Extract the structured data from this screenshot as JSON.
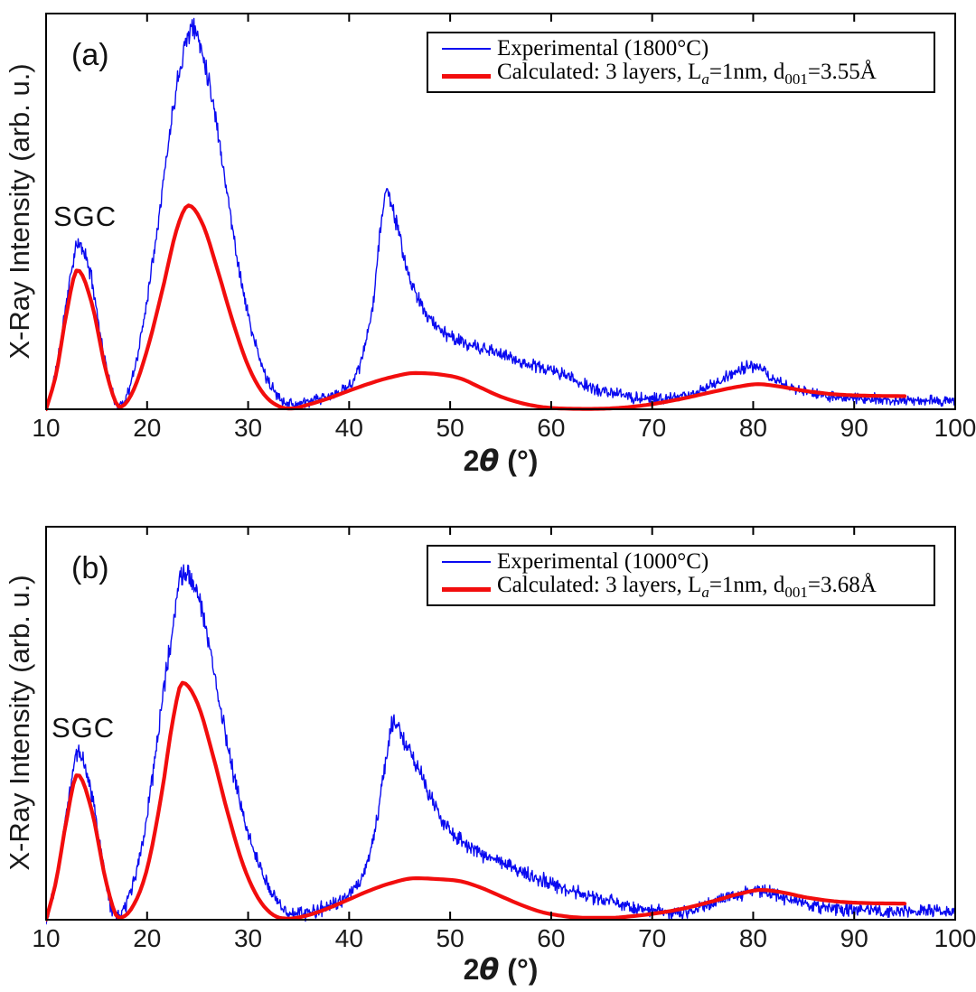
{
  "figure": {
    "background": "#ffffff",
    "axis_color": "#000000",
    "tick_label_color": "#1a1a1a"
  },
  "chart_data": [
    {
      "type": "line",
      "panel": "(a)",
      "annotation": "SGC",
      "ylabel": "X-Ray Intensity (arb. u.)",
      "xlabel": {
        "prefix": "2",
        "theta": "θ",
        "suffix": " (°)"
      },
      "xlim": [
        10,
        100
      ],
      "x_ticks": [
        "10",
        "20",
        "30",
        "40",
        "50",
        "60",
        "70",
        "80",
        "90",
        "100"
      ],
      "grid": false,
      "legend_position": "upper right",
      "legend": [
        {
          "label": "Experimental (1800°C)",
          "color": "#0a0af0",
          "line_width": 2
        },
        {
          "p1": "Calculated: 3 layers, L",
          "s1": "a",
          "p2": "=1nm, d",
          "s2": "001",
          "p3": "=3.55Å",
          "color": "#f20d0d",
          "line_width": 5
        }
      ],
      "series": [
        {
          "name": "Experimental (1800°C)",
          "color": "#0a0af0",
          "style": "noisy",
          "line_width": 1.4,
          "seed": 11,
          "noise_base": 0.01,
          "noise_scale": 0.011,
          "x_range": [
            10,
            100
          ],
          "anchors": [
            [
              10,
              0.0
            ],
            [
              11,
              0.1
            ],
            [
              12,
              0.27
            ],
            [
              13.2,
              0.415
            ],
            [
              14.5,
              0.33
            ],
            [
              15.5,
              0.17
            ],
            [
              16.5,
              0.045
            ],
            [
              17.2,
              0.012
            ],
            [
              18,
              0.035
            ],
            [
              19,
              0.13
            ],
            [
              20,
              0.28
            ],
            [
              21,
              0.46
            ],
            [
              22,
              0.65
            ],
            [
              23,
              0.83
            ],
            [
              24.5,
              0.963
            ],
            [
              25.5,
              0.9
            ],
            [
              26.5,
              0.78
            ],
            [
              27.5,
              0.62
            ],
            [
              28.5,
              0.45
            ],
            [
              29.5,
              0.3
            ],
            [
              30.5,
              0.185
            ],
            [
              31.5,
              0.1
            ],
            [
              32.5,
              0.048
            ],
            [
              33.8,
              0.018
            ],
            [
              35,
              0.013
            ],
            [
              36.5,
              0.022
            ],
            [
              38,
              0.032
            ],
            [
              39.5,
              0.05
            ],
            [
              40.5,
              0.08
            ],
            [
              41.5,
              0.15
            ],
            [
              42.5,
              0.3
            ],
            [
              43.2,
              0.48
            ],
            [
              43.7,
              0.55
            ],
            [
              44.4,
              0.5
            ],
            [
              45.2,
              0.41
            ],
            [
              46,
              0.33
            ],
            [
              47,
              0.27
            ],
            [
              48.5,
              0.215
            ],
            [
              50,
              0.185
            ],
            [
              52,
              0.161
            ],
            [
              55,
              0.14
            ],
            [
              57,
              0.12
            ],
            [
              60,
              0.098
            ],
            [
              61.5,
              0.085
            ],
            [
              63,
              0.065
            ],
            [
              65,
              0.046
            ],
            [
              67,
              0.036
            ],
            [
              69,
              0.028
            ],
            [
              71,
              0.026
            ],
            [
              73,
              0.033
            ],
            [
              75,
              0.05
            ],
            [
              77,
              0.077
            ],
            [
              79,
              0.104
            ],
            [
              80,
              0.107
            ],
            [
              81.5,
              0.086
            ],
            [
              83,
              0.063
            ],
            [
              85,
              0.045
            ],
            [
              88,
              0.031
            ],
            [
              92,
              0.026
            ],
            [
              96,
              0.023
            ],
            [
              100,
              0.021
            ]
          ]
        },
        {
          "name": "Calculated: 3 layers, La=1nm, d001=3.55Å",
          "color": "#f20d0d",
          "style": "smooth",
          "line_width": 4.2,
          "x_range": [
            10,
            95
          ],
          "anchors": [
            [
              10,
              0.0
            ],
            [
              11,
              0.09
            ],
            [
              12,
              0.24
            ],
            [
              13.1,
              0.352
            ],
            [
              14.5,
              0.27
            ],
            [
              16,
              0.09
            ],
            [
              17.3,
              0.006
            ],
            [
              18.5,
              0.04
            ],
            [
              20,
              0.15
            ],
            [
              21.5,
              0.3
            ],
            [
              23,
              0.46
            ],
            [
              24.1,
              0.515
            ],
            [
              25.5,
              0.468
            ],
            [
              27,
              0.35
            ],
            [
              28.5,
              0.22
            ],
            [
              30,
              0.11
            ],
            [
              31.5,
              0.04
            ],
            [
              33,
              0.008
            ],
            [
              34.3,
              0.002
            ],
            [
              36,
              0.012
            ],
            [
              38,
              0.028
            ],
            [
              40,
              0.047
            ],
            [
              42,
              0.065
            ],
            [
              44,
              0.08
            ],
            [
              46.5,
              0.0915
            ],
            [
              49,
              0.088
            ],
            [
              51,
              0.078
            ],
            [
              53,
              0.055
            ],
            [
              55,
              0.032
            ],
            [
              57,
              0.016
            ],
            [
              59,
              0.006
            ],
            [
              61,
              0.002
            ],
            [
              64,
              0.001
            ],
            [
              67,
              0.004
            ],
            [
              70,
              0.013
            ],
            [
              73,
              0.027
            ],
            [
              76,
              0.044
            ],
            [
              78.5,
              0.057
            ],
            [
              80.5,
              0.0635
            ],
            [
              82.5,
              0.058
            ],
            [
              85,
              0.047
            ],
            [
              88,
              0.038
            ],
            [
              91,
              0.0345
            ],
            [
              95,
              0.033
            ]
          ]
        }
      ]
    },
    {
      "type": "line",
      "panel": "(b)",
      "annotation": "SGC",
      "ylabel": "X-Ray Intensity (arb. u.)",
      "xlabel": {
        "prefix": "2",
        "theta": "θ",
        "suffix": " (°)"
      },
      "xlim": [
        10,
        100
      ],
      "x_ticks": [
        "10",
        "20",
        "30",
        "40",
        "50",
        "60",
        "70",
        "80",
        "90",
        "100"
      ],
      "grid": false,
      "legend_position": "upper right",
      "legend": [
        {
          "label": "Experimental (1000°C)",
          "color": "#0a0af0",
          "line_width": 2
        },
        {
          "p1": "Calculated: 3 layers, L",
          "s1": "a",
          "p2": "=1nm, d",
          "s2": "001",
          "p3": "=3.68Å",
          "color": "#f20d0d",
          "line_width": 5
        }
      ],
      "series": [
        {
          "name": "Experimental (1000°C)",
          "color": "#0a0af0",
          "style": "noisy",
          "line_width": 1.4,
          "seed": 29,
          "noise_base": 0.012,
          "noise_scale": 0.011,
          "x_range": [
            10,
            100
          ],
          "anchors": [
            [
              10,
              0.0
            ],
            [
              11,
              0.1
            ],
            [
              12,
              0.27
            ],
            [
              13.2,
              0.424
            ],
            [
              14.5,
              0.32
            ],
            [
              15.5,
              0.16
            ],
            [
              16.8,
              0.012
            ],
            [
              18,
              0.045
            ],
            [
              19,
              0.13
            ],
            [
              20,
              0.27
            ],
            [
              21,
              0.45
            ],
            [
              22,
              0.65
            ],
            [
              23.6,
              0.88
            ],
            [
              25,
              0.83
            ],
            [
              26,
              0.72
            ],
            [
              27,
              0.58
            ],
            [
              28,
              0.44
            ],
            [
              29,
              0.32
            ],
            [
              30,
              0.22
            ],
            [
              31,
              0.145
            ],
            [
              32,
              0.085
            ],
            [
              33.5,
              0.026
            ],
            [
              35,
              0.014
            ],
            [
              36.5,
              0.022
            ],
            [
              38,
              0.035
            ],
            [
              40,
              0.062
            ],
            [
              41.5,
              0.12
            ],
            [
              42.5,
              0.22
            ],
            [
              43.5,
              0.38
            ],
            [
              44.3,
              0.505
            ],
            [
              45.2,
              0.47
            ],
            [
              46,
              0.43
            ],
            [
              47,
              0.375
            ],
            [
              48.5,
              0.29
            ],
            [
              50,
              0.225
            ],
            [
              52,
              0.185
            ],
            [
              54,
              0.158
            ],
            [
              56,
              0.134
            ],
            [
              58,
              0.112
            ],
            [
              60,
              0.092
            ],
            [
              62,
              0.075
            ],
            [
              64,
              0.059
            ],
            [
              66,
              0.044
            ],
            [
              68,
              0.032
            ],
            [
              70,
              0.023
            ],
            [
              72,
              0.018
            ],
            [
              74,
              0.023
            ],
            [
              76,
              0.041
            ],
            [
              78,
              0.059
            ],
            [
              80.3,
              0.076
            ],
            [
              82,
              0.064
            ],
            [
              84,
              0.048
            ],
            [
              86,
              0.036
            ],
            [
              88.5,
              0.028
            ],
            [
              91,
              0.024
            ],
            [
              95,
              0.022
            ],
            [
              100,
              0.021
            ]
          ]
        },
        {
          "name": "Calculated: 3 layers, La=1nm, d001=3.68Å",
          "color": "#f20d0d",
          "style": "smooth",
          "line_width": 4.2,
          "x_range": [
            10,
            95
          ],
          "anchors": [
            [
              10,
              0.0
            ],
            [
              11,
              0.1
            ],
            [
              12,
              0.25
            ],
            [
              13.1,
              0.369
            ],
            [
              14.5,
              0.28
            ],
            [
              16,
              0.09
            ],
            [
              17.2,
              0.005
            ],
            [
              18.5,
              0.03
            ],
            [
              20,
              0.13
            ],
            [
              21.5,
              0.33
            ],
            [
              22.5,
              0.5
            ],
            [
              23.5,
              0.603
            ],
            [
              25,
              0.55
            ],
            [
              26.5,
              0.42
            ],
            [
              28,
              0.27
            ],
            [
              29.5,
              0.14
            ],
            [
              31,
              0.055
            ],
            [
              32.5,
              0.012
            ],
            [
              34,
              0.003
            ],
            [
              36,
              0.012
            ],
            [
              38,
              0.03
            ],
            [
              40,
              0.052
            ],
            [
              42,
              0.074
            ],
            [
              44,
              0.092
            ],
            [
              46.5,
              0.1055
            ],
            [
              49,
              0.103
            ],
            [
              51,
              0.098
            ],
            [
              53,
              0.082
            ],
            [
              55,
              0.06
            ],
            [
              57,
              0.038
            ],
            [
              59,
              0.02
            ],
            [
              61,
              0.01
            ],
            [
              63.5,
              0.005
            ],
            [
              66,
              0.005
            ],
            [
              68,
              0.009
            ],
            [
              70,
              0.015
            ],
            [
              73,
              0.028
            ],
            [
              76,
              0.047
            ],
            [
              78.5,
              0.065
            ],
            [
              80.8,
              0.0757
            ],
            [
              83,
              0.069
            ],
            [
              85,
              0.058
            ],
            [
              88,
              0.047
            ],
            [
              91,
              0.0425
            ],
            [
              95,
              0.041
            ]
          ]
        }
      ]
    }
  ]
}
